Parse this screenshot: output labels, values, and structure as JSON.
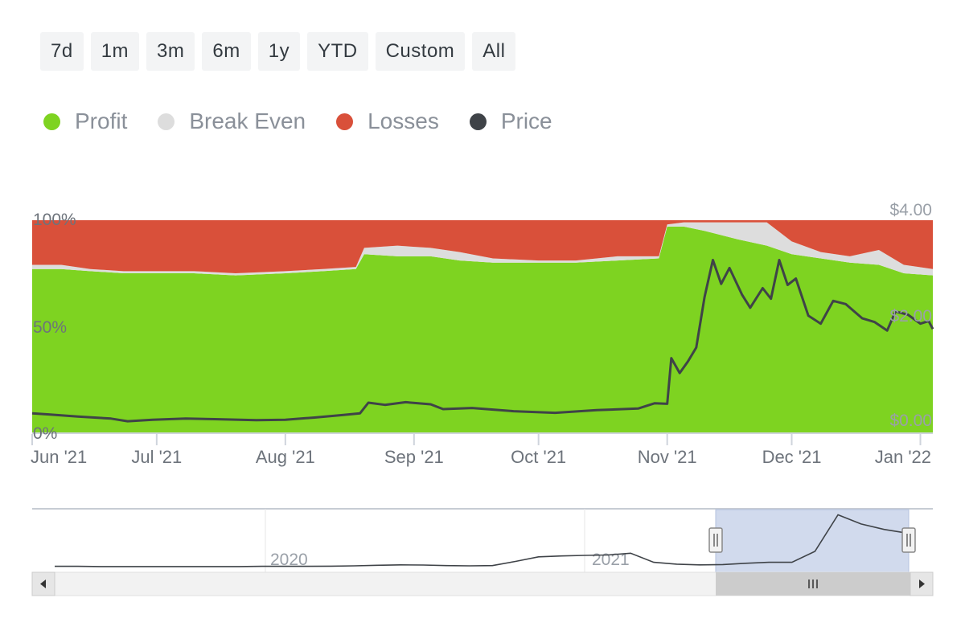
{
  "range_selector": {
    "buttons": [
      "7d",
      "1m",
      "3m",
      "6m",
      "1y",
      "YTD",
      "Custom",
      "All"
    ]
  },
  "chart_data": {
    "type": "area",
    "title": "",
    "stacking": "percent",
    "legend": {
      "position": "top-left",
      "entries": [
        {
          "name": "Profit",
          "color": "#7ed321"
        },
        {
          "name": "Break Even",
          "color": "#dddddd"
        },
        {
          "name": "Losses",
          "color": "#d9503a"
        },
        {
          "name": "Price",
          "color": "#3f4348"
        }
      ]
    },
    "x_ticks": [
      "Jun '21",
      "Jul '21",
      "Aug '21",
      "Sep '21",
      "Oct '21",
      "Nov '21",
      "Dec '21",
      "Jan '22"
    ],
    "x_tick_dates": [
      "2021-06-01",
      "2021-07-01",
      "2021-08-01",
      "2021-09-01",
      "2021-10-01",
      "2021-11-01",
      "2021-12-01",
      "2022-01-01"
    ],
    "xlim": [
      "2021-06-01",
      "2022-01-04"
    ],
    "y_left": {
      "ticks": [
        "0%",
        "50%",
        "100%"
      ],
      "lim": [
        0,
        100
      ],
      "unit": "%"
    },
    "y_right": {
      "ticks": [
        "$0.00",
        "$2.00",
        "$4.00"
      ],
      "lim": [
        0,
        4
      ]
    },
    "grid": false,
    "series": [
      {
        "name": "Profit",
        "axis": "left",
        "points": [
          [
            "2021-06-01",
            77
          ],
          [
            "2021-06-08",
            77
          ],
          [
            "2021-06-15",
            76
          ],
          [
            "2021-06-23",
            75
          ],
          [
            "2021-07-01",
            75
          ],
          [
            "2021-07-10",
            75
          ],
          [
            "2021-07-20",
            74
          ],
          [
            "2021-08-01",
            75
          ],
          [
            "2021-08-10",
            76
          ],
          [
            "2021-08-18",
            77
          ],
          [
            "2021-08-20",
            84
          ],
          [
            "2021-08-28",
            83
          ],
          [
            "2021-09-05",
            83
          ],
          [
            "2021-09-12",
            81
          ],
          [
            "2021-09-20",
            80
          ],
          [
            "2021-10-01",
            80
          ],
          [
            "2021-10-10",
            80
          ],
          [
            "2021-10-20",
            81
          ],
          [
            "2021-10-30",
            82
          ],
          [
            "2021-11-01",
            97
          ],
          [
            "2021-11-05",
            97
          ],
          [
            "2021-11-10",
            95
          ],
          [
            "2021-11-18",
            91
          ],
          [
            "2021-11-25",
            88
          ],
          [
            "2021-12-01",
            84
          ],
          [
            "2021-12-08",
            82
          ],
          [
            "2021-12-15",
            80
          ],
          [
            "2021-12-22",
            79
          ],
          [
            "2021-12-28",
            75
          ],
          [
            "2022-01-04",
            74
          ]
        ]
      },
      {
        "name": "Break Even",
        "axis": "left",
        "points": [
          [
            "2021-06-01",
            2
          ],
          [
            "2021-06-08",
            2
          ],
          [
            "2021-06-15",
            1
          ],
          [
            "2021-06-23",
            1
          ],
          [
            "2021-07-01",
            1
          ],
          [
            "2021-07-10",
            1
          ],
          [
            "2021-07-20",
            1
          ],
          [
            "2021-08-01",
            1
          ],
          [
            "2021-08-10",
            1
          ],
          [
            "2021-08-18",
            1
          ],
          [
            "2021-08-20",
            3
          ],
          [
            "2021-08-28",
            5
          ],
          [
            "2021-09-05",
            4
          ],
          [
            "2021-09-12",
            4
          ],
          [
            "2021-09-20",
            2
          ],
          [
            "2021-10-01",
            1
          ],
          [
            "2021-10-10",
            1
          ],
          [
            "2021-10-20",
            2
          ],
          [
            "2021-10-30",
            1
          ],
          [
            "2021-11-01",
            1
          ],
          [
            "2021-11-05",
            2
          ],
          [
            "2021-11-10",
            4
          ],
          [
            "2021-11-18",
            8
          ],
          [
            "2021-11-25",
            11
          ],
          [
            "2021-12-01",
            6
          ],
          [
            "2021-12-08",
            3
          ],
          [
            "2021-12-15",
            3
          ],
          [
            "2021-12-22",
            7
          ],
          [
            "2021-12-28",
            4
          ],
          [
            "2022-01-04",
            3
          ]
        ]
      },
      {
        "name": "Losses",
        "axis": "left",
        "points": [
          [
            "2021-06-01",
            21
          ],
          [
            "2021-06-08",
            21
          ],
          [
            "2021-06-15",
            23
          ],
          [
            "2021-06-23",
            24
          ],
          [
            "2021-07-01",
            24
          ],
          [
            "2021-07-10",
            24
          ],
          [
            "2021-07-20",
            25
          ],
          [
            "2021-08-01",
            24
          ],
          [
            "2021-08-10",
            23
          ],
          [
            "2021-08-18",
            22
          ],
          [
            "2021-08-20",
            13
          ],
          [
            "2021-08-28",
            12
          ],
          [
            "2021-09-05",
            13
          ],
          [
            "2021-09-12",
            15
          ],
          [
            "2021-09-20",
            18
          ],
          [
            "2021-10-01",
            19
          ],
          [
            "2021-10-10",
            19
          ],
          [
            "2021-10-20",
            17
          ],
          [
            "2021-10-30",
            17
          ],
          [
            "2021-11-01",
            2
          ],
          [
            "2021-11-05",
            1
          ],
          [
            "2021-11-10",
            1
          ],
          [
            "2021-11-18",
            1
          ],
          [
            "2021-11-25",
            1
          ],
          [
            "2021-12-01",
            10
          ],
          [
            "2021-12-08",
            15
          ],
          [
            "2021-12-15",
            17
          ],
          [
            "2021-12-22",
            14
          ],
          [
            "2021-12-28",
            21
          ],
          [
            "2022-01-04",
            23
          ]
        ]
      },
      {
        "name": "Price",
        "axis": "right",
        "points": [
          [
            "2021-06-01",
            0.36
          ],
          [
            "2021-06-05",
            0.34
          ],
          [
            "2021-06-12",
            0.3
          ],
          [
            "2021-06-20",
            0.26
          ],
          [
            "2021-06-24",
            0.21
          ],
          [
            "2021-06-30",
            0.24
          ],
          [
            "2021-07-08",
            0.26
          ],
          [
            "2021-07-15",
            0.25
          ],
          [
            "2021-07-25",
            0.23
          ],
          [
            "2021-08-01",
            0.24
          ],
          [
            "2021-08-08",
            0.28
          ],
          [
            "2021-08-15",
            0.33
          ],
          [
            "2021-08-19",
            0.36
          ],
          [
            "2021-08-21",
            0.56
          ],
          [
            "2021-08-25",
            0.52
          ],
          [
            "2021-08-30",
            0.57
          ],
          [
            "2021-09-05",
            0.53
          ],
          [
            "2021-09-08",
            0.44
          ],
          [
            "2021-09-15",
            0.46
          ],
          [
            "2021-09-25",
            0.4
          ],
          [
            "2021-10-05",
            0.37
          ],
          [
            "2021-10-15",
            0.42
          ],
          [
            "2021-10-25",
            0.45
          ],
          [
            "2021-10-29",
            0.55
          ],
          [
            "2021-11-01",
            0.54
          ],
          [
            "2021-11-02",
            1.4
          ],
          [
            "2021-11-04",
            1.12
          ],
          [
            "2021-11-06",
            1.34
          ],
          [
            "2021-11-08",
            1.6
          ],
          [
            "2021-11-10",
            2.55
          ],
          [
            "2021-11-12",
            3.25
          ],
          [
            "2021-11-14",
            2.8
          ],
          [
            "2021-11-16",
            3.1
          ],
          [
            "2021-11-19",
            2.6
          ],
          [
            "2021-11-21",
            2.35
          ],
          [
            "2021-11-24",
            2.72
          ],
          [
            "2021-11-26",
            2.52
          ],
          [
            "2021-11-28",
            3.25
          ],
          [
            "2021-11-30",
            2.78
          ],
          [
            "2021-12-02",
            2.9
          ],
          [
            "2021-12-05",
            2.2
          ],
          [
            "2021-12-08",
            2.05
          ],
          [
            "2021-12-11",
            2.48
          ],
          [
            "2021-12-14",
            2.42
          ],
          [
            "2021-12-18",
            2.15
          ],
          [
            "2021-12-21",
            2.08
          ],
          [
            "2021-12-24",
            1.92
          ],
          [
            "2021-12-26",
            2.28
          ],
          [
            "2021-12-29",
            2.22
          ],
          [
            "2022-01-01",
            2.05
          ],
          [
            "2022-01-03",
            2.1
          ],
          [
            "2022-01-04",
            1.95
          ]
        ]
      }
    ]
  },
  "navigator": {
    "labels": [
      "2020",
      "2021"
    ],
    "price": [
      0.28,
      0.28,
      0.27,
      0.27,
      0.27,
      0.27,
      0.27,
      0.27,
      0.27,
      0.28,
      0.28,
      0.28,
      0.29,
      0.31,
      0.34,
      0.36,
      0.35,
      0.32,
      0.31,
      0.32,
      0.55,
      0.8,
      0.85,
      0.88,
      0.9,
      1.0,
      0.5,
      0.4,
      0.36,
      0.38,
      0.45,
      0.5,
      0.5,
      1.1,
      3.1,
      2.6,
      2.3,
      2.1
    ]
  }
}
